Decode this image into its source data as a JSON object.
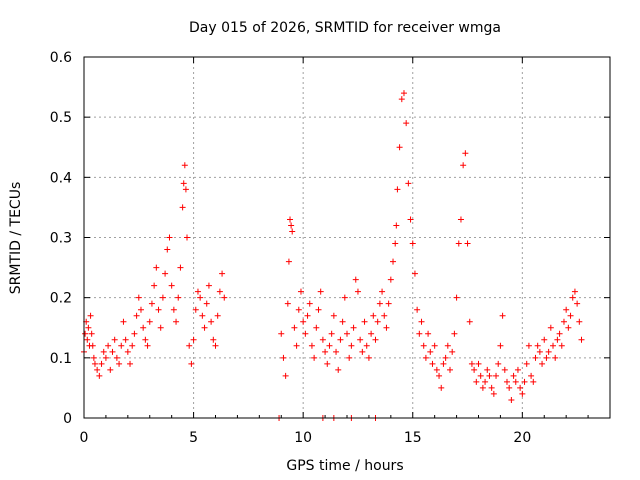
{
  "chart_data": {
    "type": "scatter",
    "title": "Day 015 of 2026, SRMTID for receiver wmga",
    "xlabel": "GPS time / hours",
    "ylabel": "SRMTID / TECUs",
    "xlim": [
      0,
      24
    ],
    "ylim": [
      0,
      0.6
    ],
    "xticks": [
      0,
      5,
      10,
      15,
      20
    ],
    "xtick_labels": [
      "0",
      "5",
      "10",
      "15",
      "20"
    ],
    "yticks": [
      0,
      0.1,
      0.2,
      0.3,
      0.4,
      0.5,
      0.6
    ],
    "ytick_labels": [
      "0",
      "0.1",
      "0.2",
      "0.3",
      "0.4",
      "0.5",
      "0.6"
    ],
    "grid": true,
    "marker": "plus",
    "color": "#ff0000",
    "series": [
      {
        "name": "SRMTID",
        "x": [
          0.0,
          0.05,
          0.1,
          0.15,
          0.2,
          0.25,
          0.3,
          0.35,
          0.4,
          0.45,
          0.5,
          0.6,
          0.7,
          0.8,
          0.9,
          1.0,
          1.1,
          1.2,
          1.3,
          1.4,
          1.5,
          1.6,
          1.7,
          1.8,
          1.9,
          2.0,
          2.1,
          2.2,
          2.3,
          2.4,
          2.5,
          2.6,
          2.7,
          2.8,
          2.9,
          3.0,
          3.1,
          3.2,
          3.3,
          3.4,
          3.5,
          3.6,
          3.7,
          3.8,
          3.9,
          4.0,
          4.1,
          4.2,
          4.3,
          4.4,
          4.5,
          4.55,
          4.6,
          4.65,
          4.7,
          4.8,
          4.9,
          5.0,
          5.1,
          5.2,
          5.3,
          5.4,
          5.5,
          5.6,
          5.7,
          5.8,
          5.9,
          6.0,
          6.1,
          6.2,
          6.3,
          6.4,
          9.0,
          9.1,
          9.2,
          9.3,
          9.35,
          9.4,
          9.45,
          9.5,
          9.6,
          9.7,
          9.8,
          9.9,
          10.0,
          10.1,
          10.2,
          10.3,
          10.4,
          10.5,
          10.6,
          10.7,
          10.8,
          10.9,
          11.0,
          11.1,
          11.2,
          11.3,
          11.4,
          11.5,
          11.6,
          11.7,
          11.8,
          11.9,
          12.0,
          12.1,
          12.2,
          12.3,
          12.4,
          12.5,
          12.6,
          12.7,
          12.8,
          12.9,
          13.0,
          13.1,
          13.2,
          13.3,
          13.4,
          13.5,
          13.6,
          13.7,
          13.8,
          13.9,
          14.0,
          14.1,
          14.2,
          14.25,
          14.3,
          14.4,
          14.5,
          14.6,
          14.7,
          14.8,
          14.9,
          15.0,
          15.1,
          15.2,
          15.3,
          15.4,
          15.5,
          15.6,
          15.7,
          15.8,
          15.9,
          16.0,
          16.1,
          16.2,
          16.3,
          16.4,
          16.5,
          16.6,
          16.7,
          16.8,
          16.9,
          17.0,
          17.1,
          17.2,
          17.3,
          17.4,
          17.5,
          17.6,
          17.7,
          17.8,
          17.9,
          18.0,
          18.1,
          18.2,
          18.3,
          18.4,
          18.5,
          18.6,
          18.7,
          18.8,
          18.9,
          19.0,
          19.1,
          19.2,
          19.3,
          19.4,
          19.5,
          19.6,
          19.7,
          19.8,
          19.9,
          20.0,
          20.1,
          20.2,
          20.3,
          20.4,
          20.5,
          20.6,
          20.7,
          20.8,
          20.9,
          21.0,
          21.1,
          21.2,
          21.3,
          21.4,
          21.5,
          21.6,
          21.7,
          21.8,
          21.9,
          22.0,
          22.1,
          22.2,
          22.3,
          22.4,
          22.5,
          22.6,
          22.7,
          8.9,
          10.9,
          11.4,
          12.2,
          13.3
        ],
        "y": [
          0.11,
          0.14,
          0.16,
          0.13,
          0.15,
          0.12,
          0.17,
          0.14,
          0.12,
          0.1,
          0.09,
          0.08,
          0.07,
          0.09,
          0.11,
          0.1,
          0.12,
          0.08,
          0.11,
          0.13,
          0.1,
          0.09,
          0.12,
          0.16,
          0.13,
          0.11,
          0.09,
          0.12,
          0.14,
          0.17,
          0.2,
          0.18,
          0.15,
          0.13,
          0.12,
          0.16,
          0.19,
          0.22,
          0.25,
          0.18,
          0.15,
          0.2,
          0.24,
          0.28,
          0.3,
          0.22,
          0.18,
          0.16,
          0.2,
          0.25,
          0.35,
          0.39,
          0.42,
          0.38,
          0.3,
          0.12,
          0.09,
          0.13,
          0.18,
          0.21,
          0.2,
          0.17,
          0.15,
          0.19,
          0.22,
          0.16,
          0.13,
          0.12,
          0.17,
          0.21,
          0.24,
          0.2,
          0.14,
          0.1,
          0.07,
          0.19,
          0.26,
          0.33,
          0.32,
          0.31,
          0.15,
          0.12,
          0.18,
          0.21,
          0.16,
          0.14,
          0.17,
          0.19,
          0.12,
          0.1,
          0.15,
          0.18,
          0.21,
          0.13,
          0.11,
          0.09,
          0.12,
          0.14,
          0.17,
          0.11,
          0.08,
          0.13,
          0.16,
          0.2,
          0.14,
          0.1,
          0.12,
          0.15,
          0.23,
          0.21,
          0.13,
          0.11,
          0.16,
          0.12,
          0.1,
          0.14,
          0.17,
          0.13,
          0.16,
          0.19,
          0.21,
          0.17,
          0.15,
          0.19,
          0.23,
          0.26,
          0.29,
          0.32,
          0.38,
          0.45,
          0.53,
          0.54,
          0.49,
          0.39,
          0.33,
          0.29,
          0.24,
          0.18,
          0.14,
          0.16,
          0.12,
          0.1,
          0.14,
          0.11,
          0.09,
          0.12,
          0.08,
          0.07,
          0.05,
          0.09,
          0.1,
          0.12,
          0.08,
          0.11,
          0.14,
          0.2,
          0.29,
          0.33,
          0.42,
          0.44,
          0.29,
          0.16,
          0.09,
          0.08,
          0.06,
          0.09,
          0.07,
          0.05,
          0.06,
          0.08,
          0.07,
          0.05,
          0.04,
          0.07,
          0.09,
          0.12,
          0.17,
          0.08,
          0.06,
          0.05,
          0.03,
          0.07,
          0.06,
          0.08,
          0.05,
          0.04,
          0.06,
          0.09,
          0.12,
          0.07,
          0.06,
          0.1,
          0.12,
          0.11,
          0.09,
          0.13,
          0.1,
          0.11,
          0.15,
          0.12,
          0.1,
          0.13,
          0.14,
          0.12,
          0.16,
          0.18,
          0.15,
          0.17,
          0.2,
          0.21,
          0.19,
          0.16,
          0.13,
          0.0,
          0.0,
          0.0,
          0.0,
          0.0
        ]
      }
    ]
  }
}
